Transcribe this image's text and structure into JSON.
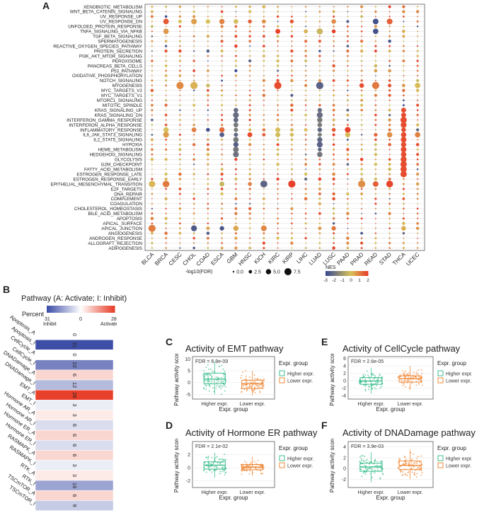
{
  "panels": {
    "A": {
      "letter": "A"
    },
    "B": {
      "letter": "B",
      "title": "Pathway (A: Activate; I: Inhibit)",
      "percent_label": "Percent",
      "min_label": "31",
      "min_sub": "Inhibit",
      "mid_label": "0",
      "max_label": "28",
      "max_sub": "Activate"
    },
    "C": {
      "letter": "C"
    },
    "D": {
      "letter": "D"
    },
    "E": {
      "letter": "E"
    },
    "F": {
      "letter": "F"
    }
  },
  "legend_A": {
    "size_title": "-log10(FDR)",
    "size_labels": [
      "0.0",
      "2.5",
      "5.0",
      "7.5"
    ],
    "nes_title": "NES",
    "nes_labels": [
      "-3",
      "-2",
      "-1",
      "0",
      "1",
      "2"
    ]
  },
  "colors": {
    "nes_neg": "#3b4a8f",
    "nes_mid": "#d8c25a",
    "nes_pos": "#e8402a",
    "grid": "#dddddd",
    "higher": "#3fbf8f",
    "lower": "#f08a3a",
    "inhibit": "#3f4fa8",
    "activate": "#e8402a"
  },
  "chart_data": [
    {
      "type": "scatter",
      "id": "dotplot",
      "title": "",
      "x_categories": [
        "BLCA",
        "BRCA",
        "CESC",
        "CHOL",
        "COAD",
        "ESCA",
        "GBM",
        "HNSC",
        "KICH",
        "KIRC",
        "KIRP",
        "LIHC",
        "LUAD",
        "LUSC",
        "PAAD",
        "PRAD",
        "READ",
        "STAD",
        "THCA",
        "UCEC"
      ],
      "y_categories": [
        "XENOBIOTIC_METABOLISM",
        "WNT_BETA_CATENIN_SIGNALING",
        "UV_RESPONSE_UP",
        "UV_RESPONSE_DN",
        "UNFOLDED_PROTEIN_RESPONSE",
        "TNFA_SIGNALING_VIA_NFKB",
        "TGF_BETA_SIGNALING",
        "SPERMATOGENESIS",
        "REACTIVE_OXYGEN_SPECIES_PATHWAY",
        "PROTEIN_SECRETION",
        "PI3K_AKT_MTOR_SIGNALING",
        "PEROXISOME",
        "PANCREAS_BETA_CELLS",
        "P53_PATHWAY",
        "OXIDATIVE_PHOSPHORYLATION",
        "NOTCH_SIGNALING",
        "MYOGENESIS",
        "MYC_TARGETS_V2",
        "MYC_TARGETS_V1",
        "MTORC1_SIGNALING",
        "MITOTIC_SPINDLE",
        "KRAS_SIGNALING_UP",
        "KRAS_SIGNALING_DN",
        "INTERFERON_GAMMA_RESPONSE",
        "INTERFERON_ALPHA_RESPONSE",
        "INFLAMMATORY_RESPONSE",
        "IL6_JAK_STAT3_SIGNALING",
        "IL2_STAT5_SIGNALING",
        "HYPOXIA",
        "HEME_METABOLISM",
        "HEDGEHOG_SIGNALING",
        "GLYCOLYSIS",
        "G2M_CHECKPOINT",
        "FATTY_ACID_METABOLISM",
        "ESTROGEN_RESPONSE_LATE",
        "ESTROGEN_RESPONSE_EARLY",
        "EPITHELIAL_MESENCHYMAL_TRANSITION",
        "E2F_TARGETS",
        "DNA_REPAIR",
        "COMPLEMENT",
        "COAGULATION",
        "CHOLESTEROL_HOMEOSTASIS",
        "BILE_ACID_METABOLISM",
        "APOPTOSIS",
        "APICAL_SURFACE",
        "APICAL_JUNCTION",
        "ANGIOGENESIS",
        "ANDROGEN_RESPONSE",
        "ALLOGRAFT_REJECTION",
        "ADIPOGENESIS"
      ],
      "size_variable": "-log10(FDR)",
      "color_variable": "NES",
      "size_range": [
        0,
        7.5
      ],
      "color_range": [
        -3,
        2
      ]
    },
    {
      "type": "heatmap",
      "id": "pathway-heatmap",
      "rows": [
        "Apoptosis_A",
        "Apoptosis_I",
        "CellCycle_A",
        "CellCycle_I",
        "DNADamage_A",
        "DNADamage_I",
        "EMT_A",
        "EMT_I",
        "Hormone AR_A",
        "Hormone AR_I",
        "Hormone ER_A",
        "Hormone ER_I",
        "RASMAPK_A",
        "RASMAPK_I",
        "RTK_A",
        "RTK_I",
        "TSCmTOR_A",
        "TSCmTOR_I"
      ],
      "values": [
        0,
        31,
        0,
        22,
        6,
        12,
        28,
        3,
        3,
        6,
        6,
        6,
        6,
        3,
        3,
        16,
        6,
        9
      ],
      "signs": [
        1,
        -1,
        1,
        -1,
        1,
        -1,
        1,
        -1,
        1,
        -1,
        1,
        -1,
        1,
        -1,
        1,
        -1,
        1,
        -1
      ],
      "color_range": [
        -31,
        28
      ]
    },
    {
      "type": "box",
      "id": "C",
      "title": "Activity of EMT pathway",
      "annotation": "FDR = 6.8e-09",
      "xlabel": "Expr. group",
      "ylabel": "Pathway activity score",
      "categories": [
        "Higher expr.",
        "Lower expr."
      ],
      "yticks": [
        -5,
        0,
        5,
        10
      ],
      "ylim": [
        -7,
        11
      ],
      "boxes": [
        {
          "q1": -0.5,
          "median": 1.5,
          "q3": 4.0,
          "low": -5,
          "high": 9
        },
        {
          "q1": -2.5,
          "median": -0.5,
          "q3": 1.0,
          "low": -5.5,
          "high": 5
        }
      ],
      "legend_title": "Expr. group",
      "legend": [
        "Higher expr.",
        "Lower expr."
      ]
    },
    {
      "type": "box",
      "id": "D",
      "title": "Activity of Hormone ER pathway",
      "annotation": "FDR = 2.1e-02",
      "xlabel": "Expr. group",
      "ylabel": "Pathway activity score",
      "categories": [
        "Higher expr.",
        "Lower expr."
      ],
      "yticks": [
        -2,
        0,
        2
      ],
      "ylim": [
        -3,
        4
      ],
      "boxes": [
        {
          "q1": -0.2,
          "median": 0.4,
          "q3": 0.9,
          "low": -1.5,
          "high": 2.3
        },
        {
          "q1": -0.3,
          "median": 0.1,
          "q3": 0.5,
          "low": -1.2,
          "high": 1.7
        }
      ],
      "legend_title": "Expr. group",
      "legend": [
        "Higher expr.",
        "Lower expr."
      ]
    },
    {
      "type": "box",
      "id": "E",
      "title": "Activity of CellCycle pathway",
      "annotation": "FDR = 2.6e-05",
      "xlabel": "Expr. group",
      "ylabel": "Pathway activity score",
      "categories": [
        "Higher expr.",
        "Lower expr."
      ],
      "yticks": [
        -4,
        -2,
        0,
        2,
        4,
        6
      ],
      "ylim": [
        -5,
        6.5
      ],
      "boxes": [
        {
          "q1": -1.0,
          "median": -0.1,
          "q3": 0.8,
          "low": -3.5,
          "high": 3.5
        },
        {
          "q1": -0.4,
          "median": 0.5,
          "q3": 1.3,
          "low": -2.5,
          "high": 4
        }
      ],
      "legend_title": "Expr. group",
      "legend": [
        "Higher expr.",
        "Lower expr."
      ]
    },
    {
      "type": "box",
      "id": "F",
      "title": "Activity of DNADamage pathway",
      "annotation": "FDR = 3.9e-03",
      "xlabel": "Expr. group",
      "ylabel": "Pathway activity score",
      "categories": [
        "Higher expr.",
        "Lower expr."
      ],
      "yticks": [
        -2,
        0,
        2,
        4
      ],
      "ylim": [
        -3.5,
        5
      ],
      "boxes": [
        {
          "q1": -0.5,
          "median": 0.3,
          "q3": 1.0,
          "low": -2.5,
          "high": 3
        },
        {
          "q1": -0.2,
          "median": 0.6,
          "q3": 1.4,
          "low": -2,
          "high": 3.5
        }
      ],
      "legend_title": "Expr. group",
      "legend": [
        "Higher expr.",
        "Lower expr."
      ]
    }
  ]
}
